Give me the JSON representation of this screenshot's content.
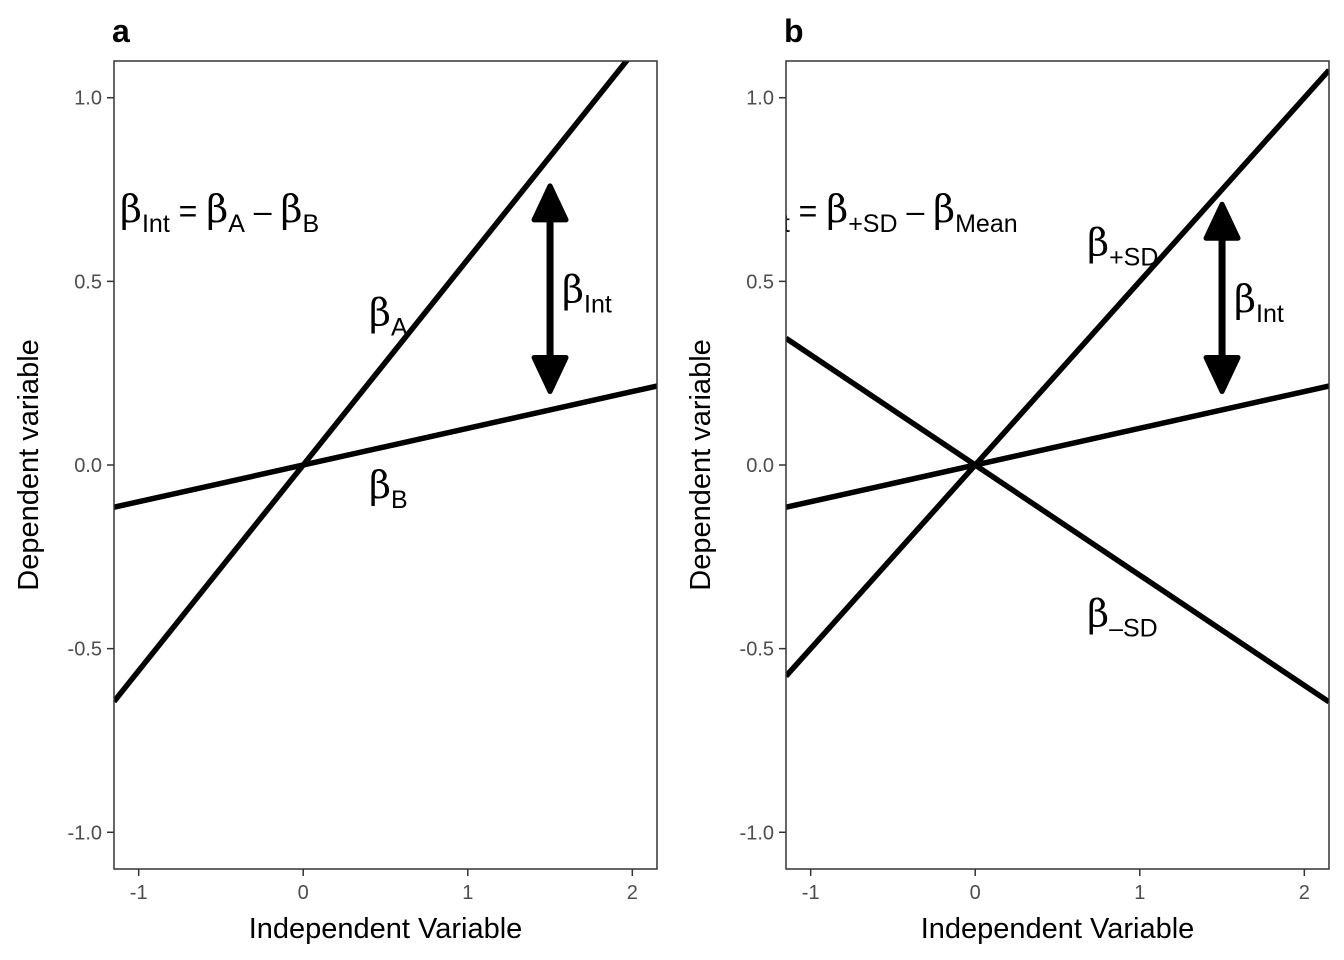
{
  "chart_data": [
    {
      "panel": "a",
      "type": "line",
      "xlabel": "Independent Variable",
      "ylabel": "Dependent variable",
      "xlim": [
        -1.15,
        2.15
      ],
      "ylim": [
        -1.1,
        1.1
      ],
      "xticks": [
        "-1",
        "0",
        "1",
        "2"
      ],
      "yticks": [
        "-1.0",
        "-0.5",
        "0.0",
        "0.5",
        "1.0"
      ],
      "grid": false,
      "series": [
        {
          "slope": 0.56,
          "intercept": 0
        },
        {
          "slope": 0.1,
          "intercept": 0
        }
      ],
      "annotations": {
        "formula": {
          "b1": "β",
          "s1": "Int",
          "eq": "=",
          "b2": "β",
          "s2": "A",
          "minus": "–",
          "b3": "β",
          "s3": "B"
        },
        "line_labels": [
          {
            "b": "β",
            "s": "A",
            "x": 0.4,
            "y": 0.38
          },
          {
            "b": "β",
            "s": "B",
            "x": 0.4,
            "y": -0.09
          }
        ],
        "arrow": {
          "x": 1.5,
          "y_top": 0.76,
          "y_bottom": 0.2,
          "label_b": "β",
          "label_s": "Int"
        }
      }
    },
    {
      "panel": "b",
      "type": "line",
      "xlabel": "Independent Variable",
      "ylabel": "Dependent variable",
      "xlim": [
        -1.15,
        2.15
      ],
      "ylim": [
        -1.1,
        1.1
      ],
      "xticks": [
        "-1",
        "0",
        "1",
        "2"
      ],
      "yticks": [
        "-1.0",
        "-0.5",
        "0.0",
        "0.5",
        "1.0"
      ],
      "grid": false,
      "series": [
        {
          "slope": 0.5,
          "intercept": 0
        },
        {
          "slope": 0.1,
          "intercept": 0
        },
        {
          "slope": -0.3,
          "intercept": 0
        }
      ],
      "annotations": {
        "formula": {
          "b1": "β",
          "s1": "Int",
          "eq": "=",
          "b2": "β",
          "s2": "+SD",
          "minus": "–",
          "b3": "β",
          "s3": "Mean"
        },
        "line_labels": [
          {
            "b": "β",
            "s": "+SD",
            "x": 0.68,
            "y": 0.57
          },
          {
            "b": "β",
            "s": "–SD",
            "x": 0.68,
            "y": -0.44
          }
        ],
        "arrow": {
          "x": 1.5,
          "y_top": 0.71,
          "y_bottom": 0.2,
          "label_b": "β",
          "label_s": "Int"
        }
      }
    }
  ]
}
